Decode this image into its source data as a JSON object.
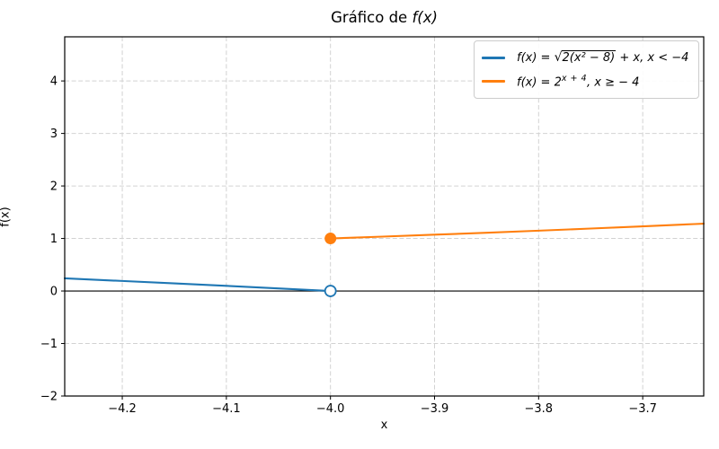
{
  "title": {
    "prefix": "Gráfico de ",
    "math": "f(x)"
  },
  "legend": {
    "items": [
      {
        "color": "#1f77b4",
        "prefix": "f(x) = ",
        "radical": "√",
        "sqrt_content": "2(x² − 8)",
        "suffix": " + x,  x < −4"
      },
      {
        "color": "#ff7f0e",
        "prefix": "f(x) = 2",
        "sup": "x + 4",
        "suffix": ",  x ≥ − 4"
      }
    ]
  },
  "chart_data": {
    "type": "line",
    "title": "Gráfico de f(x)",
    "xlabel": "x",
    "ylabel": "f(x)",
    "xlim": [
      -4.2553,
      -3.6414
    ],
    "ylim": [
      -2,
      4.84
    ],
    "x_ticks": [
      -4.2,
      -4.1,
      -4.0,
      -3.9,
      -3.8,
      -3.7
    ],
    "x_tick_labels": [
      "−4.2",
      "−4.1",
      "−4.0",
      "−3.9",
      "−3.8",
      "−3.7"
    ],
    "y_ticks": [
      -2,
      -1,
      0,
      1,
      2,
      3,
      4
    ],
    "y_tick_labels": [
      "−2",
      "−1",
      "0",
      "1",
      "2",
      "3",
      "4"
    ],
    "grid": true,
    "grid_color": "#d2d2d2",
    "axhline": {
      "y": 0,
      "color": "#000000"
    },
    "legend_position": "upper right",
    "series": [
      {
        "name": "f(x) = √(2(x² − 8)) + x, x < −4",
        "color": "#1f77b4",
        "points": [
          [
            -4.2553,
            0.2406
          ],
          [
            -4.2,
            0.1909
          ],
          [
            -4.15,
            0.1448
          ],
          [
            -4.1,
            0.0976
          ],
          [
            -4.05,
            0.0494
          ],
          [
            -4.0,
            0.0
          ]
        ],
        "marker": {
          "x": -4.0,
          "y": 0.0,
          "type": "open"
        }
      },
      {
        "name": "f(x) = 2^(x + 4), x ≥ −4",
        "color": "#ff7f0e",
        "points": [
          [
            -4.0,
            1.0
          ],
          [
            -3.95,
            1.0353
          ],
          [
            -3.9,
            1.0718
          ],
          [
            -3.85,
            1.1096
          ],
          [
            -3.8,
            1.1487
          ],
          [
            -3.75,
            1.1892
          ],
          [
            -3.7,
            1.2311
          ],
          [
            -3.65,
            1.2746
          ],
          [
            -3.6414,
            1.2827
          ]
        ],
        "marker": {
          "x": -4.0,
          "y": 1.0,
          "type": "filled"
        }
      }
    ]
  }
}
